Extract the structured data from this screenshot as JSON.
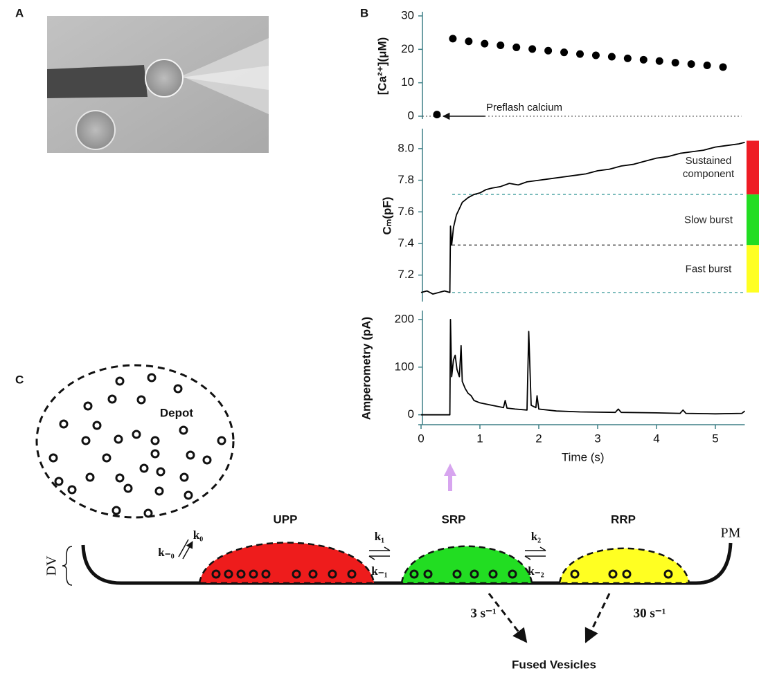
{
  "panel_labels": [
    "A",
    "B",
    "C"
  ],
  "chart_data": [
    {
      "type": "scatter",
      "ylabel": "[Ca²⁺](μM)",
      "annotation": "Preflash calcium",
      "color": "#000000",
      "x": [
        0.27,
        0.54,
        0.81,
        1.08,
        1.35,
        1.62,
        1.89,
        2.16,
        2.43,
        2.7,
        2.97,
        3.24,
        3.51,
        3.78,
        4.05,
        4.32,
        4.59,
        4.86,
        5.13
      ],
      "values": [
        0.5,
        23.2,
        22.4,
        21.7,
        21.2,
        20.6,
        20.1,
        19.6,
        19.1,
        18.6,
        18.2,
        17.8,
        17.3,
        16.9,
        16.5,
        16.0,
        15.6,
        15.2,
        14.7
      ],
      "xlim": [
        0,
        5.5
      ],
      "ylim": [
        0,
        30
      ],
      "yticks": [
        0,
        10,
        20,
        30
      ]
    },
    {
      "type": "line",
      "ylabel": "Cₘ(pF)",
      "color": "#000000",
      "x": [
        0,
        0.1,
        0.2,
        0.3,
        0.4,
        0.49,
        0.5,
        0.52,
        0.55,
        0.6,
        0.65,
        0.7,
        0.8,
        0.9,
        1.0,
        1.1,
        1.2,
        1.35,
        1.5,
        1.65,
        1.8,
        2.0,
        2.2,
        2.4,
        2.6,
        2.8,
        3.0,
        3.2,
        3.4,
        3.6,
        3.8,
        4.0,
        4.2,
        4.4,
        4.6,
        4.8,
        5.0,
        5.2,
        5.4,
        5.5
      ],
      "values": [
        7.09,
        7.1,
        7.08,
        7.09,
        7.1,
        7.09,
        7.51,
        7.39,
        7.5,
        7.58,
        7.62,
        7.66,
        7.69,
        7.71,
        7.72,
        7.74,
        7.75,
        7.76,
        7.78,
        7.77,
        7.79,
        7.8,
        7.81,
        7.82,
        7.83,
        7.84,
        7.86,
        7.87,
        7.89,
        7.9,
        7.92,
        7.94,
        7.95,
        7.97,
        7.98,
        7.99,
        8.01,
        8.02,
        8.03,
        8.04
      ],
      "xlim": [
        0,
        5.5
      ],
      "ylim": [
        7.05,
        8.1
      ],
      "yticks": [
        7.2,
        7.4,
        7.6,
        7.8,
        {
          "value": 8,
          "label": "8.0"
        }
      ],
      "components": [
        {
          "name": "Sustained component",
          "color": "#ee1c24",
          "level_color": "#3a9a9a",
          "from": 7.71,
          "to": 8.05
        },
        {
          "name": "Slow burst",
          "color": "#22dd22",
          "level_color": "#333333",
          "from": 7.39,
          "to": 7.71
        },
        {
          "name": "Fast burst",
          "color": "#ffff22",
          "level_color": "#3a9a9a",
          "from": 7.09,
          "to": 7.39
        }
      ]
    },
    {
      "type": "line",
      "ylabel": "Amperometry (pA)",
      "xlabel": "Time (s)",
      "color": "#000000",
      "x": [
        0,
        0.49,
        0.5,
        0.52,
        0.55,
        0.58,
        0.61,
        0.65,
        0.68,
        0.7,
        0.75,
        0.8,
        0.85,
        0.9,
        1.0,
        1.2,
        1.4,
        1.43,
        1.46,
        1.6,
        1.8,
        1.83,
        1.87,
        1.95,
        1.97,
        2.0,
        2.3,
        2.7,
        3.3,
        3.35,
        3.4,
        4.0,
        4.4,
        4.45,
        4.5,
        5.0,
        5.45,
        5.5
      ],
      "values": [
        0,
        0,
        200,
        80,
        115,
        125,
        95,
        80,
        145,
        70,
        55,
        45,
        40,
        30,
        25,
        20,
        15,
        30,
        14,
        12,
        10,
        175,
        20,
        15,
        40,
        12,
        8,
        6,
        5,
        12,
        5,
        4,
        3,
        10,
        3,
        2,
        3,
        8
      ],
      "xlim": [
        0,
        5.5
      ],
      "ylim": [
        -15,
        210
      ],
      "xticks": [
        0,
        1,
        2,
        3,
        4,
        5
      ],
      "yticks": [
        0,
        100,
        200
      ]
    }
  ],
  "diagram": {
    "depot": "Depot",
    "pools": [
      {
        "name": "UPP",
        "color": "#ee1c1c"
      },
      {
        "name": "SRP",
        "color": "#22dd22"
      },
      {
        "name": "RRP",
        "color": "#ffff22"
      }
    ],
    "rates": [
      [
        "k₀",
        "k₋₀"
      ],
      [
        "k₁",
        "k₋₁"
      ],
      [
        "k₂",
        "k₋₂"
      ]
    ],
    "membrane": "PM",
    "docking": "DV",
    "fusion_rates": [
      "3 s⁻¹",
      "30 s⁻¹"
    ],
    "fused": "Fused Vesicles"
  }
}
